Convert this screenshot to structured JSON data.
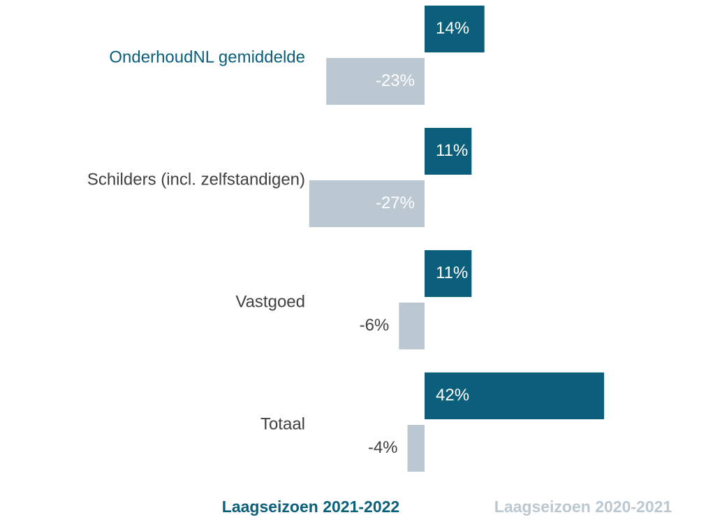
{
  "chart_data": {
    "type": "bar",
    "orientation": "horizontal",
    "categories": [
      "OnderhoudNL gemiddelde",
      "Schilders (incl. zelfstandigen)",
      "Vastgoed",
      "Totaal"
    ],
    "series": [
      {
        "name": "Laagseizoen 2021-2022",
        "color": "#0b5f7a",
        "values": [
          14,
          11,
          11,
          42
        ],
        "value_labels": [
          "14%",
          "11%",
          "11%",
          "42%"
        ]
      },
      {
        "name": "Laagseizoen 2020-2021",
        "color": "#bcc8d1",
        "values": [
          -23,
          -27,
          -6,
          -4
        ],
        "value_labels": [
          "-23%",
          "-27%",
          "-6%",
          "-4%"
        ]
      }
    ]
  }
}
